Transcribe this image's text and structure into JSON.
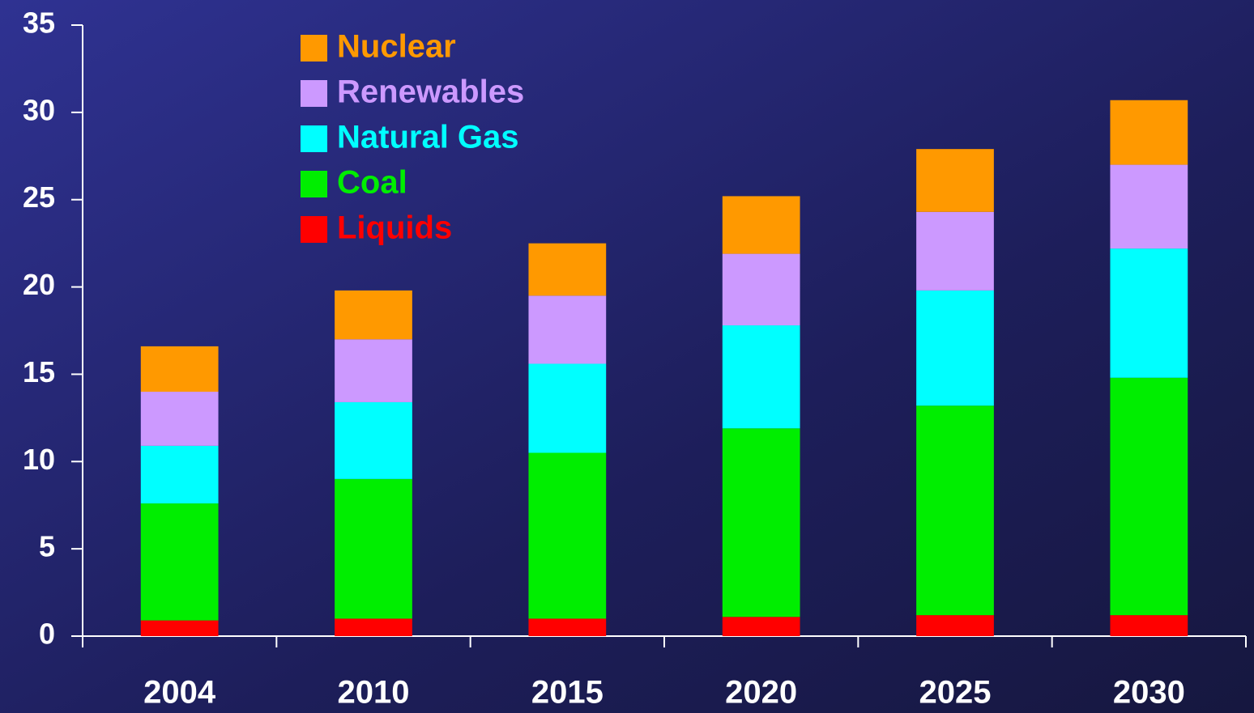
{
  "chart_data": {
    "type": "stacked_bar",
    "categories": [
      "2004",
      "2010",
      "2015",
      "2020",
      "2025",
      "2030"
    ],
    "series": [
      {
        "name": "Liquids",
        "color": "#ff0000",
        "values": [
          0.9,
          1.0,
          1.0,
          1.1,
          1.2,
          1.2
        ]
      },
      {
        "name": "Coal",
        "color": "#00ee00",
        "values": [
          6.7,
          8.0,
          9.5,
          10.8,
          12.0,
          13.6
        ]
      },
      {
        "name": "Natural Gas",
        "color": "#00ffff",
        "values": [
          3.3,
          4.4,
          5.1,
          5.9,
          6.6,
          7.4
        ]
      },
      {
        "name": "Renewables",
        "color": "#cc99ff",
        "values": [
          3.1,
          3.6,
          3.9,
          4.1,
          4.5,
          4.8
        ]
      },
      {
        "name": "Nuclear",
        "color": "#ff9900",
        "values": [
          2.6,
          2.8,
          3.0,
          3.3,
          3.6,
          3.7
        ]
      }
    ],
    "ylim": [
      0,
      35
    ],
    "yticks": [
      0,
      5,
      10,
      15,
      20,
      25,
      30,
      35
    ],
    "grid": false
  }
}
